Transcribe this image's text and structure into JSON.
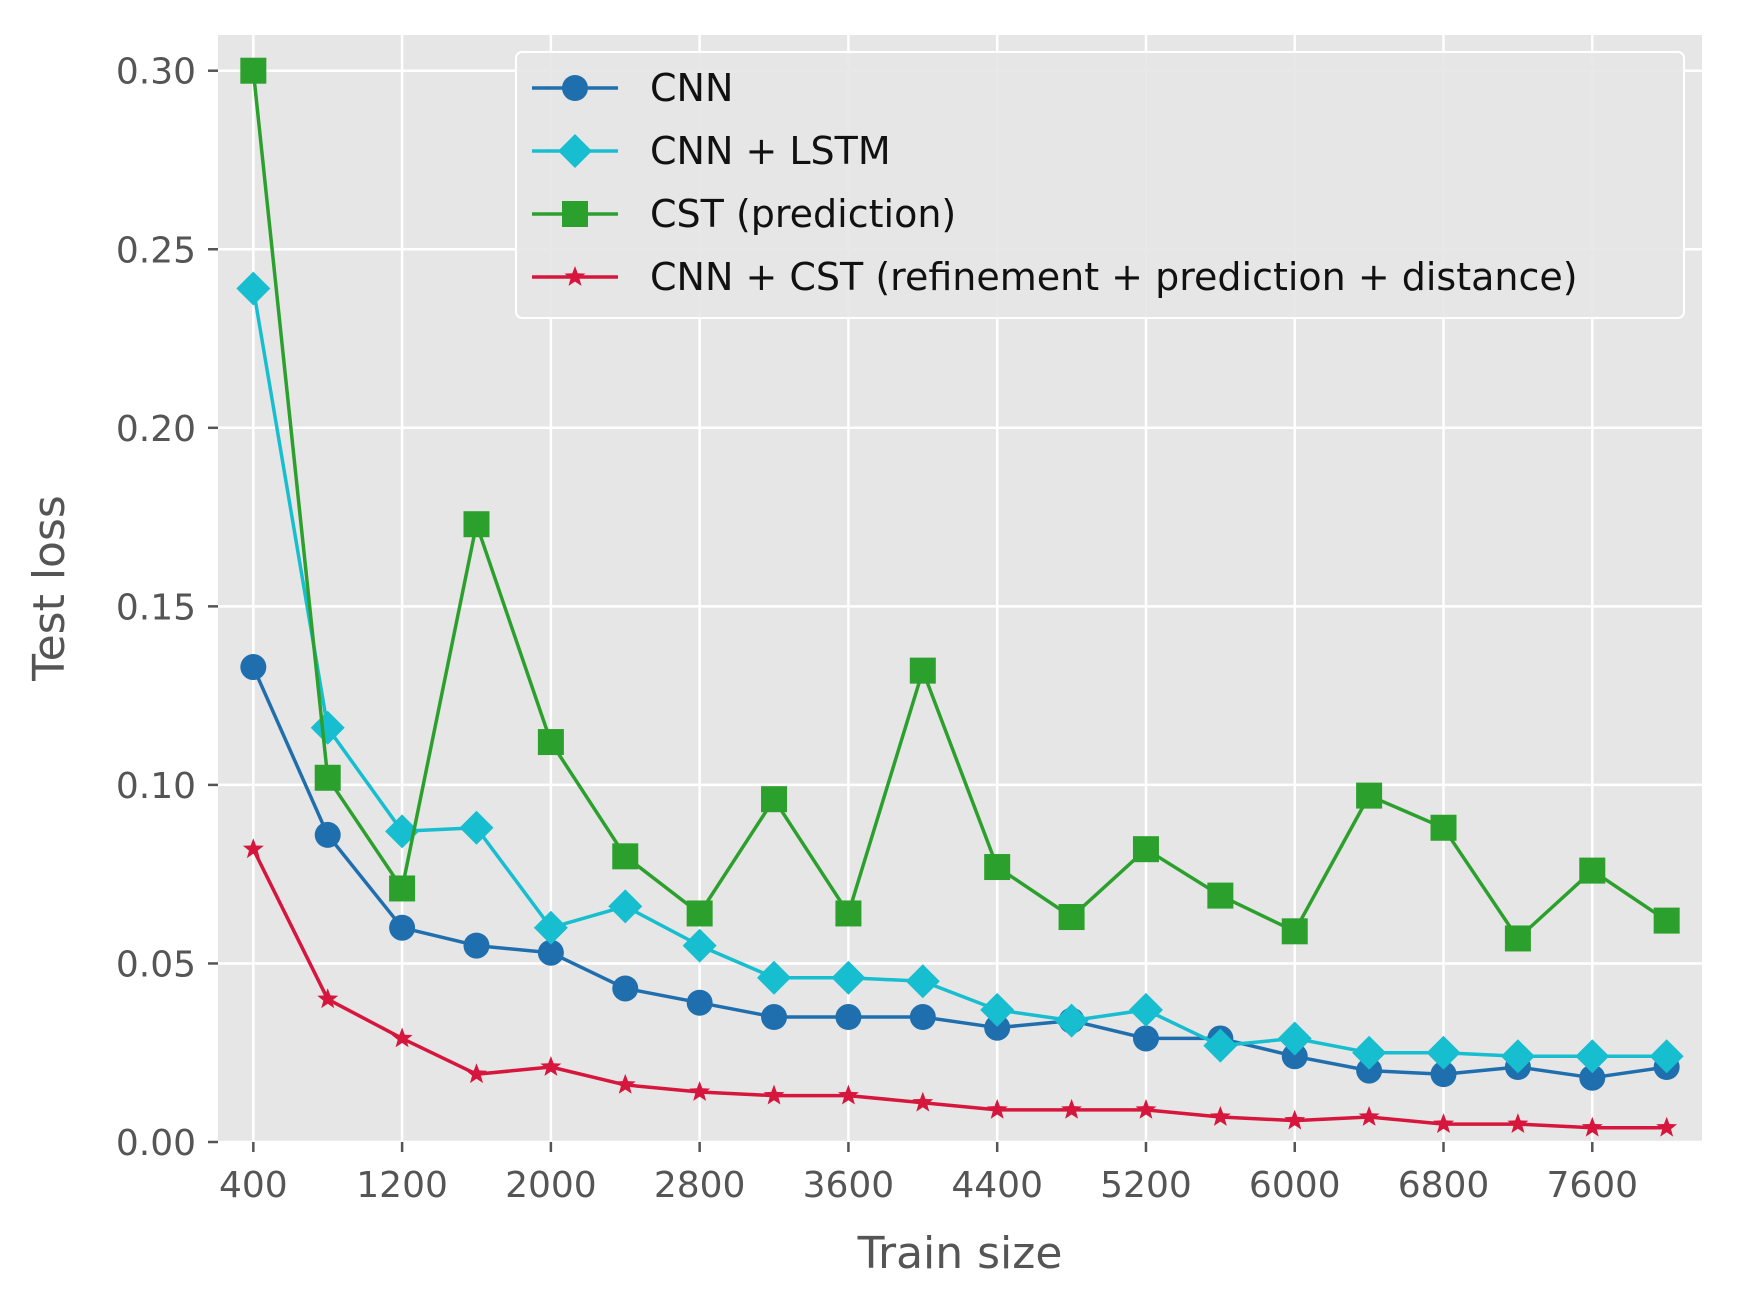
{
  "chart_data": {
    "type": "line",
    "title": "",
    "xlabel": "Train size",
    "ylabel": "Test loss",
    "x": [
      400,
      800,
      1200,
      1600,
      2000,
      2400,
      2800,
      3200,
      3600,
      4000,
      4400,
      4800,
      5200,
      5600,
      6000,
      6400,
      6800,
      7200,
      7600,
      8000
    ],
    "xticks": [
      400,
      1200,
      2000,
      2800,
      3600,
      4400,
      5200,
      6000,
      6800,
      7600
    ],
    "xtick_labels": [
      "400",
      "1200",
      "2000",
      "2800",
      "3600",
      "4400",
      "5200",
      "6000",
      "6800",
      "7600"
    ],
    "yticks": [
      0.0,
      0.05,
      0.1,
      0.15,
      0.2,
      0.25,
      0.3
    ],
    "ytick_labels": [
      "0.00",
      "0.05",
      "0.10",
      "0.15",
      "0.20",
      "0.25",
      "0.30"
    ],
    "xlim": [
      210,
      8190
    ],
    "ylim": [
      0,
      0.31
    ],
    "grid": true,
    "legend_position": "top-right",
    "series": [
      {
        "name": "CNN",
        "color": "#1f6fae",
        "marker": "circle",
        "values": [
          0.133,
          0.086,
          0.06,
          0.055,
          0.053,
          0.043,
          0.039,
          0.035,
          0.035,
          0.035,
          0.032,
          0.034,
          0.029,
          0.029,
          0.024,
          0.02,
          0.019,
          0.021,
          0.018,
          0.021
        ]
      },
      {
        "name": "CNN + LSTM",
        "color": "#17becf",
        "marker": "diamond",
        "values": [
          0.239,
          0.116,
          0.087,
          0.088,
          0.06,
          0.066,
          0.055,
          0.046,
          0.046,
          0.045,
          0.037,
          0.034,
          0.037,
          0.027,
          0.029,
          0.025,
          0.025,
          0.024,
          0.024,
          0.024
        ]
      },
      {
        "name": "CST (prediction)",
        "color": "#2ca02c",
        "marker": "square",
        "values": [
          0.3,
          0.102,
          0.071,
          0.173,
          0.112,
          0.08,
          0.064,
          0.096,
          0.064,
          0.132,
          0.077,
          0.063,
          0.082,
          0.069,
          0.059,
          0.097,
          0.088,
          0.057,
          0.076,
          0.062
        ]
      },
      {
        "name": "CNN + CST (refinement + prediction + distance)",
        "color": "#d6163c",
        "marker": "star",
        "values": [
          0.082,
          0.04,
          0.029,
          0.019,
          0.021,
          0.016,
          0.014,
          0.013,
          0.013,
          0.011,
          0.009,
          0.009,
          0.009,
          0.007,
          0.006,
          0.007,
          0.005,
          0.005,
          0.004,
          0.004
        ]
      }
    ]
  }
}
